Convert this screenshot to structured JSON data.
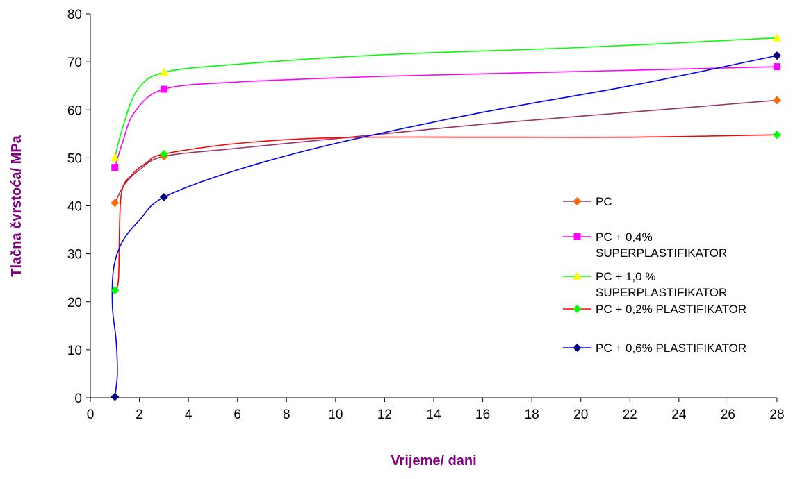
{
  "chart_data": {
    "type": "line",
    "xlabel": "Vrijeme/ dani",
    "ylabel": "Tlačna čvrstoća/ MPa",
    "xlim": [
      0,
      28
    ],
    "ylim": [
      0,
      80
    ],
    "xticks": [
      0,
      2,
      4,
      6,
      8,
      10,
      12,
      14,
      16,
      18,
      20,
      22,
      24,
      26,
      28
    ],
    "yticks": [
      0,
      10,
      20,
      30,
      40,
      50,
      60,
      70,
      80
    ],
    "grid": false,
    "legend_position": "right",
    "series": [
      {
        "name": "PC",
        "marker_points": [
          [
            1,
            40.6
          ],
          [
            3,
            50.3
          ],
          [
            28,
            62
          ]
        ],
        "marker_color": "#ff6600",
        "line_color": "#993366",
        "marker": "diamond"
      },
      {
        "name": "PC + 0,4% SUPERPLASTIFIKATOR",
        "legend_lines": [
          "PC + 0,4%",
          "SUPERPLASTIFIKATOR"
        ],
        "marker_points": [
          [
            1,
            48
          ],
          [
            3,
            64.3
          ],
          [
            28,
            69
          ]
        ],
        "marker_color": "#ff00ff",
        "line_color": "#ff00ff",
        "marker": "square"
      },
      {
        "name": "PC + 1,0 % SUPERPLASTIFIKATOR",
        "legend_lines": [
          "PC + 1,0 %",
          "SUPERPLASTIFIKATOR"
        ],
        "marker_points": [
          [
            1,
            50
          ],
          [
            3,
            67.8
          ],
          [
            28,
            75
          ]
        ],
        "marker_color": "#ffff00",
        "line_color": "#00ff00",
        "marker": "triangle"
      },
      {
        "name": "PC + 0,2% PLASTIFIKATOR",
        "marker_points": [
          [
            1,
            22.4
          ],
          [
            3,
            50.8
          ],
          [
            28,
            54.8
          ]
        ],
        "marker_color": "#00ff00",
        "line_color": "#ff0000",
        "marker": "diamond"
      },
      {
        "name": "PC + 0,6% PLASTIFIKATOR",
        "marker_points": [
          [
            1,
            0.2
          ],
          [
            3,
            41.8
          ],
          [
            28,
            71.3
          ]
        ],
        "marker_color": "#000080",
        "line_color": "#0000ff",
        "marker": "diamond"
      }
    ]
  }
}
